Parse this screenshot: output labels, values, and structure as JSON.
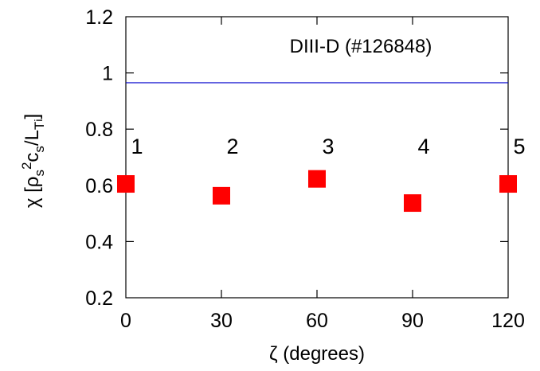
{
  "chart_data": {
    "type": "scatter",
    "title": "",
    "annotation": "DIII-D (#126848)",
    "xlabel": "ζ (degrees)",
    "ylabel": {
      "parts": [
        {
          "text": "χ [ρ"
        },
        {
          "text": "s",
          "shift": "sub"
        },
        {
          "text": "2",
          "shift": "super"
        },
        {
          "text": "c"
        },
        {
          "text": "s",
          "shift": "sub"
        },
        {
          "text": "/L"
        },
        {
          "text": "T",
          "shift": "sub"
        },
        {
          "text": "i",
          "shift": "subsub"
        },
        {
          "text": "]"
        }
      ]
    },
    "xlim": [
      0,
      120
    ],
    "ylim": [
      0.2,
      1.2
    ],
    "x_ticks": [
      0,
      30,
      60,
      90,
      120
    ],
    "x_tick_labels": [
      "0",
      "30",
      "60",
      "90",
      "120"
    ],
    "y_ticks": [
      0.2,
      0.4,
      0.6,
      0.8,
      1.0,
      1.2
    ],
    "y_tick_labels": [
      "0.2",
      "0.4",
      "0.6",
      "0.8",
      "1",
      "1.2"
    ],
    "grid": false,
    "series": [
      {
        "marker": "square",
        "color": "#ff0000",
        "x": [
          0,
          30,
          60,
          90,
          120
        ],
        "y": [
          0.605,
          0.563,
          0.623,
          0.537,
          0.605
        ],
        "point_labels": [
          "1",
          "2",
          "3",
          "4",
          "5"
        ]
      }
    ],
    "reference_line": {
      "y": 0.965,
      "color": "#0000cc"
    }
  }
}
